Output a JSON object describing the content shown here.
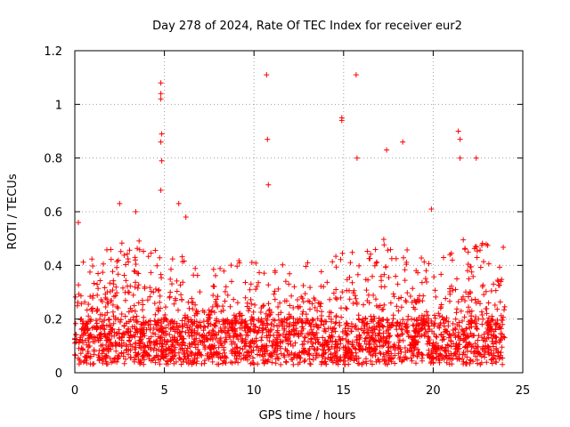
{
  "chart_data": {
    "type": "scatter",
    "title": "Day 278 of 2024, Rate Of TEC Index for receiver eur2",
    "xlabel": "GPS time / hours",
    "ylabel": "ROTI / TECUs",
    "xlim": [
      0,
      25
    ],
    "ylim": [
      0,
      1.2
    ],
    "xticks": [
      0,
      5,
      10,
      15,
      20,
      25
    ],
    "yticks": [
      0,
      0.2,
      0.4,
      0.6,
      0.8,
      1,
      1.2
    ],
    "xtick_labels": [
      "0",
      "5",
      "10",
      "15",
      "20",
      "25"
    ],
    "ytick_labels": [
      "0",
      "0.2",
      "0.4",
      "0.6",
      "0.8",
      "1",
      "1.2"
    ],
    "grid": true,
    "grid_style": "dotted",
    "marker": "+",
    "marker_color": "#ff0000",
    "x_extent_hours": [
      0,
      24
    ],
    "notable_points": [
      {
        "x": 4.8,
        "y": 1.08
      },
      {
        "x": 4.8,
        "y": 1.04
      },
      {
        "x": 4.8,
        "y": 1.02
      },
      {
        "x": 4.85,
        "y": 0.89
      },
      {
        "x": 4.8,
        "y": 0.86
      },
      {
        "x": 4.85,
        "y": 0.79
      },
      {
        "x": 4.8,
        "y": 0.68
      },
      {
        "x": 10.7,
        "y": 1.11
      },
      {
        "x": 10.75,
        "y": 0.87
      },
      {
        "x": 10.8,
        "y": 0.7
      },
      {
        "x": 15.7,
        "y": 1.11
      },
      {
        "x": 14.9,
        "y": 0.95
      },
      {
        "x": 14.9,
        "y": 0.94
      },
      {
        "x": 15.75,
        "y": 0.8
      },
      {
        "x": 18.3,
        "y": 0.86
      },
      {
        "x": 17.4,
        "y": 0.83
      },
      {
        "x": 21.4,
        "y": 0.9
      },
      {
        "x": 21.5,
        "y": 0.87
      },
      {
        "x": 21.5,
        "y": 0.8
      },
      {
        "x": 22.4,
        "y": 0.8
      },
      {
        "x": 2.5,
        "y": 0.63
      },
      {
        "x": 3.4,
        "y": 0.6
      },
      {
        "x": 5.8,
        "y": 0.63
      },
      {
        "x": 6.2,
        "y": 0.58
      },
      {
        "x": 19.9,
        "y": 0.61
      },
      {
        "x": 0.2,
        "y": 0.56
      }
    ],
    "activity_profile": [
      [
        0,
        0.3
      ],
      [
        1,
        0.3
      ],
      [
        2,
        0.36
      ],
      [
        3,
        0.34
      ],
      [
        4,
        0.36
      ],
      [
        5,
        0.32
      ],
      [
        6,
        0.3
      ],
      [
        7,
        0.24
      ],
      [
        8,
        0.26
      ],
      [
        9,
        0.28
      ],
      [
        10,
        0.3
      ],
      [
        11,
        0.28
      ],
      [
        12,
        0.25
      ],
      [
        13,
        0.27
      ],
      [
        14,
        0.28
      ],
      [
        15,
        0.32
      ],
      [
        16,
        0.3
      ],
      [
        17,
        0.36
      ],
      [
        18,
        0.36
      ],
      [
        19,
        0.32
      ],
      [
        20,
        0.25
      ],
      [
        21,
        0.33
      ],
      [
        22,
        0.38
      ],
      [
        23,
        0.36
      ],
      [
        24,
        0.34
      ]
    ]
  }
}
